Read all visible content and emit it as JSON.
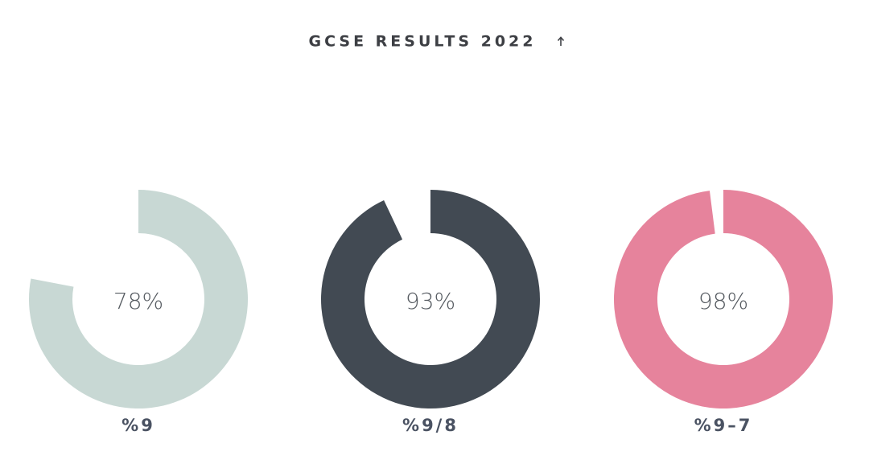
{
  "header": {
    "title": "GCSE RESULTS 2022"
  },
  "chart_data": [
    {
      "type": "donut",
      "title": "%9",
      "values": [
        78
      ],
      "value_labels": [
        "78%"
      ],
      "color": "#c8d8d4"
    },
    {
      "type": "donut",
      "title": "%9/8",
      "values": [
        93
      ],
      "value_labels": [
        "93%"
      ],
      "color": "#424a53"
    },
    {
      "type": "donut",
      "title": "%9–7",
      "values": [
        98
      ],
      "value_labels": [
        "98%"
      ],
      "color": "#e6839c"
    }
  ]
}
